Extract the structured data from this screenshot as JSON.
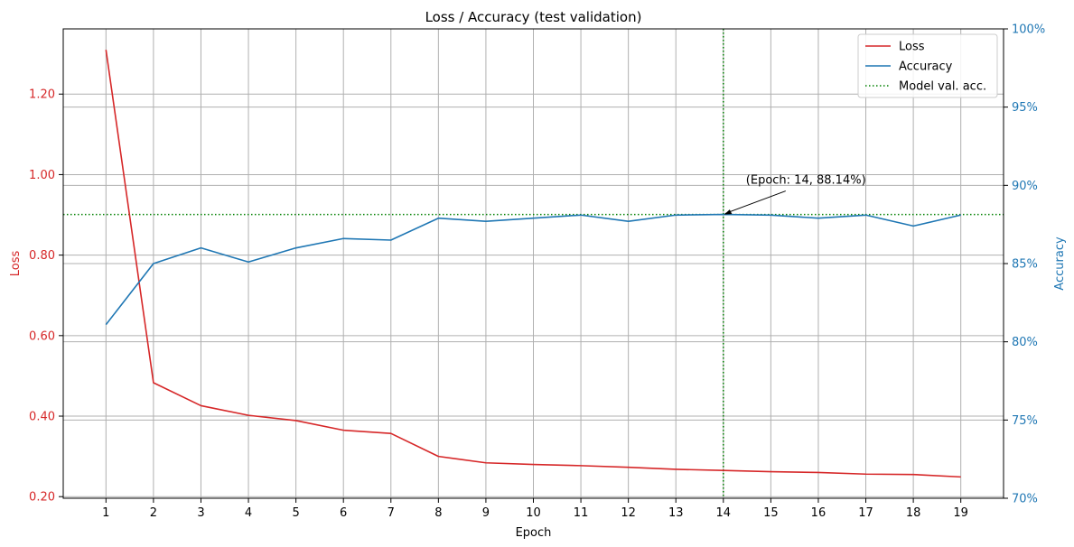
{
  "chart_data": {
    "type": "line",
    "title": "Loss / Accuracy (test validation)",
    "xlabel": "Epoch",
    "ylabel_left": "Loss",
    "ylabel_right": "Accuracy",
    "x": [
      1,
      2,
      3,
      4,
      5,
      6,
      7,
      8,
      9,
      10,
      11,
      12,
      13,
      14,
      15,
      16,
      17,
      18,
      19
    ],
    "x_ticks": [
      "1",
      "2",
      "3",
      "4",
      "5",
      "6",
      "7",
      "8",
      "9",
      "10",
      "11",
      "12",
      "13",
      "14",
      "15",
      "16",
      "17",
      "18",
      "19"
    ],
    "xlim": [
      0.1,
      19.9
    ],
    "ylim_left": [
      0.196,
      1.362
    ],
    "ylim_right": [
      70,
      100
    ],
    "left_ticks": [
      {
        "value": 0.2,
        "label": "0.20"
      },
      {
        "value": 0.4,
        "label": "0.40"
      },
      {
        "value": 0.6,
        "label": "0.60"
      },
      {
        "value": 0.8,
        "label": "0.80"
      },
      {
        "value": 1.0,
        "label": "1.00"
      },
      {
        "value": 1.2,
        "label": "1.20"
      }
    ],
    "right_ticks": [
      {
        "value": 70,
        "label": "70%"
      },
      {
        "value": 75,
        "label": "75%"
      },
      {
        "value": 80,
        "label": "80%"
      },
      {
        "value": 85,
        "label": "85%"
      },
      {
        "value": 90,
        "label": "90%"
      },
      {
        "value": 95,
        "label": "95%"
      },
      {
        "value": 100,
        "label": "100%"
      }
    ],
    "series": [
      {
        "name": "Loss",
        "axis": "left",
        "color": "#d62728",
        "style": "solid",
        "values": [
          1.31,
          0.483,
          0.426,
          0.402,
          0.389,
          0.365,
          0.357,
          0.3,
          0.284,
          0.28,
          0.277,
          0.273,
          0.268,
          0.265,
          0.262,
          0.26,
          0.256,
          0.255,
          0.249
        ]
      },
      {
        "name": "Accuracy",
        "axis": "right",
        "color": "#1f77b4",
        "style": "solid",
        "values": [
          81.1,
          85.0,
          86.0,
          85.1,
          86.0,
          86.6,
          86.5,
          87.9,
          87.7,
          87.9,
          88.1,
          87.7,
          88.1,
          88.14,
          88.1,
          87.9,
          88.1,
          87.4,
          88.1
        ]
      }
    ],
    "reference_lines": [
      {
        "name": "Model val. acc.",
        "axis": "right",
        "value": 88.14,
        "orientation": "horizontal",
        "color": "#008000",
        "style": "dotted"
      },
      {
        "name": "",
        "axis": "x",
        "value": 14,
        "orientation": "vertical",
        "color": "#008000",
        "style": "dotted"
      }
    ],
    "annotation": {
      "text": "(Epoch: 14, 88.14%)",
      "x": 14,
      "y": 88.14,
      "axis": "right"
    },
    "legend": {
      "position": "top-right",
      "entries": [
        "Loss",
        "Accuracy",
        "Model val. acc."
      ]
    },
    "grid": true,
    "colors": {
      "left_axis": "#d62728",
      "right_axis": "#1f77b4",
      "grid": "#b0b0b0"
    }
  }
}
